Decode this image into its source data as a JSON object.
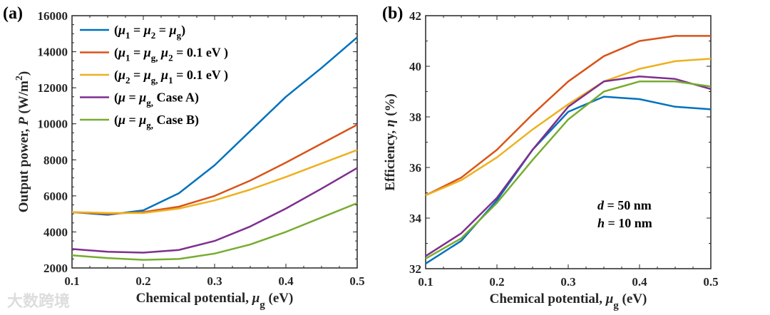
{
  "watermark": "大数跨境",
  "chart_data": [
    {
      "type": "line",
      "panel_label": "(a)",
      "xlabel": "Chemical potential, ",
      "xlabel_sym": "μ",
      "xlabel_sub": "g",
      "xlabel_unit": " (eV)",
      "ylabel": "Output power, ",
      "ylabel_sym": "P",
      "ylabel_unit": " (W/m",
      "ylabel_sup": "2",
      "ylabel_close": ")",
      "xlim": [
        0.1,
        0.5
      ],
      "ylim": [
        2000,
        16000
      ],
      "xticks": [
        0.1,
        0.2,
        0.3,
        0.4,
        0.5
      ],
      "xtick_labels": [
        "0.1",
        "0.2",
        "0.3",
        "0.4",
        "0.5"
      ],
      "yticks": [
        2000,
        4000,
        6000,
        8000,
        10000,
        12000,
        14000,
        16000
      ],
      "ytick_labels": [
        "2000",
        "4000",
        "6000",
        "8000",
        "10000",
        "12000",
        "14000",
        "16000"
      ],
      "legend_placement": "top-left",
      "x": [
        0.1,
        0.15,
        0.2,
        0.25,
        0.3,
        0.35,
        0.4,
        0.45,
        0.5
      ],
      "series": [
        {
          "name": "(μ1 = μ2 = μg)",
          "color": "#0072BD",
          "values": [
            5100,
            4950,
            5200,
            6150,
            7700,
            9600,
            11500,
            13100,
            14800
          ],
          "label_parts": [
            [
              "(",
              0
            ],
            [
              "μ",
              0
            ],
            [
              "1",
              1
            ],
            [
              " = ",
              0
            ],
            [
              "μ",
              0
            ],
            [
              "2",
              1
            ],
            [
              " = ",
              0
            ],
            [
              "μ",
              0
            ],
            [
              "g",
              1
            ],
            [
              ")",
              0
            ]
          ]
        },
        {
          "name": "(μ1 = μg, μ2 = 0.1 eV )",
          "color": "#D95319",
          "values": [
            5100,
            5000,
            5100,
            5400,
            6000,
            6850,
            7850,
            8900,
            9950
          ],
          "label_parts": [
            [
              "(",
              0
            ],
            [
              "μ",
              0
            ],
            [
              "1",
              1
            ],
            [
              " = ",
              0
            ],
            [
              "μ",
              0
            ],
            [
              "g,",
              1
            ],
            [
              " μ",
              0
            ],
            [
              "2",
              1
            ],
            [
              " = 0.1 eV )",
              0
            ]
          ]
        },
        {
          "name": "(μ2 = μg, μ1 = 0.1 eV )",
          "color": "#EDB120",
          "values": [
            5100,
            5050,
            5050,
            5300,
            5750,
            6350,
            7050,
            7800,
            8550
          ],
          "label_parts": [
            [
              "(",
              0
            ],
            [
              "μ",
              0
            ],
            [
              "2",
              1
            ],
            [
              " = ",
              0
            ],
            [
              "μ",
              0
            ],
            [
              "g,",
              1
            ],
            [
              " μ",
              0
            ],
            [
              "1",
              1
            ],
            [
              " = 0.1 eV )",
              0
            ]
          ]
        },
        {
          "name": "(μ = μg, Case A)",
          "color": "#7E2F8E",
          "values": [
            3050,
            2900,
            2850,
            3000,
            3500,
            4300,
            5300,
            6400,
            7550
          ],
          "label_parts": [
            [
              "(",
              0
            ],
            [
              "μ",
              0
            ],
            [
              "  = ",
              0
            ],
            [
              "μ",
              0
            ],
            [
              "g,",
              1
            ],
            [
              "  Case A)",
              0
            ]
          ]
        },
        {
          "name": "(μ = μg, Case B)",
          "color": "#77AC30",
          "values": [
            2700,
            2550,
            2450,
            2500,
            2800,
            3300,
            4000,
            4800,
            5600
          ],
          "label_parts": [
            [
              "(",
              0
            ],
            [
              "μ",
              0
            ],
            [
              "  = ",
              0
            ],
            [
              "μ",
              0
            ],
            [
              "g,",
              1
            ],
            [
              "  Case B)",
              0
            ]
          ]
        }
      ]
    },
    {
      "type": "line",
      "panel_label": "(b)",
      "xlabel": "Chemical potential, ",
      "xlabel_sym": "μ",
      "xlabel_sub": "g",
      "xlabel_unit": " (eV)",
      "ylabel": "Efficiency, ",
      "ylabel_sym": "η",
      "ylabel_unit": " (%)",
      "xlim": [
        0.1,
        0.5
      ],
      "ylim": [
        32,
        42
      ],
      "xticks": [
        0.1,
        0.2,
        0.3,
        0.4,
        0.5
      ],
      "xtick_labels": [
        "0.1",
        "0.2",
        "0.3",
        "0.4",
        "0.5"
      ],
      "yticks": [
        32,
        34,
        36,
        38,
        40,
        42
      ],
      "ytick_labels": [
        "32",
        "34",
        "36",
        "38",
        "40",
        "42"
      ],
      "annotations": [
        {
          "sym": "d",
          "text": " = 50 nm"
        },
        {
          "sym": "h",
          "text": " = 10 nm"
        }
      ],
      "x": [
        0.1,
        0.15,
        0.2,
        0.25,
        0.3,
        0.35,
        0.4,
        0.45,
        0.5
      ],
      "series": [
        {
          "name": "(μ1 = μ2 = μg)",
          "color": "#0072BD",
          "values": [
            32.2,
            33.1,
            34.7,
            36.7,
            38.2,
            38.8,
            38.7,
            38.4,
            38.3
          ]
        },
        {
          "name": "(μ1 = μg, μ2 = 0.1 eV )",
          "color": "#D95319",
          "values": [
            34.9,
            35.6,
            36.7,
            38.1,
            39.4,
            40.4,
            41.0,
            41.2,
            41.2
          ]
        },
        {
          "name": "(μ2 = μg, μ1 = 0.1 eV )",
          "color": "#EDB120",
          "values": [
            34.9,
            35.5,
            36.4,
            37.5,
            38.5,
            39.4,
            39.9,
            40.2,
            40.3
          ]
        },
        {
          "name": "(μ = μg, Case A)",
          "color": "#7E2F8E",
          "values": [
            32.5,
            33.4,
            34.8,
            36.7,
            38.4,
            39.4,
            39.6,
            39.5,
            39.1
          ]
        },
        {
          "name": "(μ = μg, Case B)",
          "color": "#77AC30",
          "values": [
            32.4,
            33.2,
            34.6,
            36.3,
            37.9,
            39.0,
            39.4,
            39.4,
            39.2
          ]
        }
      ]
    }
  ]
}
